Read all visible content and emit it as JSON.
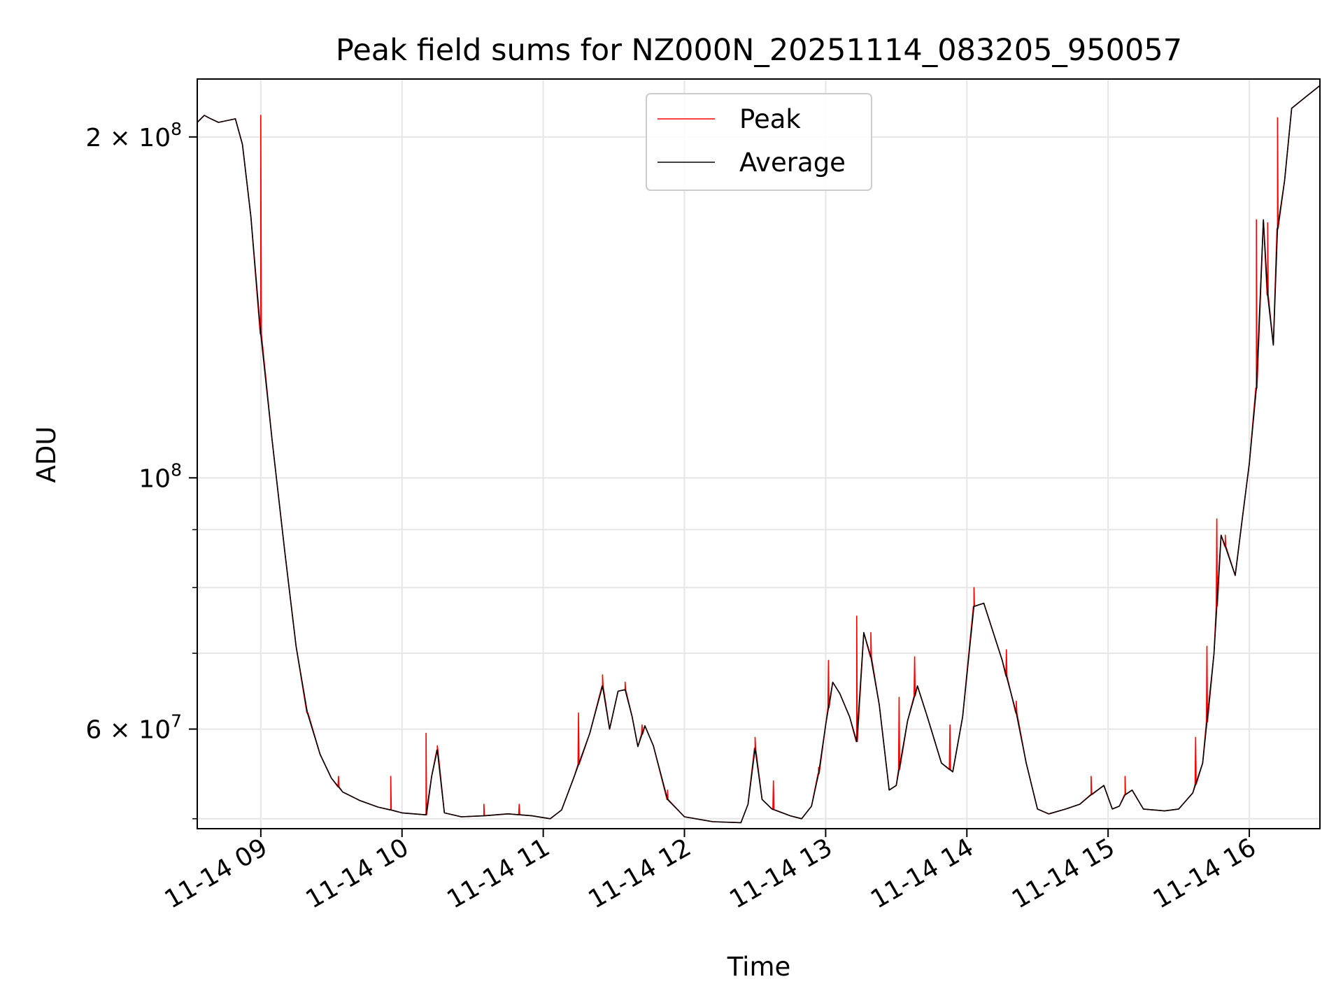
{
  "chart_data": {
    "type": "line",
    "title": "Peak field sums for NZ000N_20251114_083205_950057",
    "xlabel": "Time",
    "ylabel": "ADU",
    "yscale": "log",
    "xlim": [
      8.55,
      16.5
    ],
    "ylim": [
      49000000,
      225000000
    ],
    "grid": true,
    "legend_position": "upper-center",
    "x_ticks": [
      {
        "value": 9,
        "label": "11-14 09"
      },
      {
        "value": 10,
        "label": "11-14 10"
      },
      {
        "value": 11,
        "label": "11-14 11"
      },
      {
        "value": 12,
        "label": "11-14 12"
      },
      {
        "value": 13,
        "label": "11-14 13"
      },
      {
        "value": 14,
        "label": "11-14 14"
      },
      {
        "value": 15,
        "label": "11-14 15"
      },
      {
        "value": 16,
        "label": "11-14 16"
      }
    ],
    "y_major_ticks": [
      {
        "value": 60000000,
        "base": "6",
        "sep": " × ",
        "exp_base": "10",
        "exp": "7"
      },
      {
        "value": 100000000,
        "base": "",
        "sep": "",
        "exp_base": "10",
        "exp": "8"
      },
      {
        "value": 200000000,
        "base": "2",
        "sep": " × ",
        "exp_base": "10",
        "exp": "8"
      }
    ],
    "y_minor_ticks": [
      50000000,
      70000000,
      80000000,
      90000000
    ],
    "series": [
      {
        "name": "Peak",
        "color": "#ff0000",
        "x": [
          9.0,
          9.33,
          9.55,
          9.92,
          10.17,
          10.25,
          10.58,
          10.83,
          11.25,
          11.42,
          11.58,
          11.7,
          11.88,
          12.5,
          12.63,
          12.95,
          13.02,
          13.22,
          13.32,
          13.52,
          13.63,
          13.88,
          14.05,
          14.28,
          14.35,
          14.58,
          14.88,
          15.12,
          15.62,
          15.7,
          15.77,
          15.83,
          16.05,
          16.13,
          16.2
        ],
        "values": [
          209000000,
          62000000,
          54500000,
          54500000,
          59500000,
          58000000,
          51500000,
          51500000,
          62000000,
          67000000,
          66000000,
          60500000,
          53000000,
          59000000,
          54000000,
          55500000,
          69000000,
          75500000,
          73000000,
          64000000,
          69500000,
          60500000,
          80000000,
          70500000,
          63500000,
          50500000,
          54500000,
          54500000,
          59000000,
          71000000,
          92000000,
          89000000,
          169000000,
          168000000,
          208000000
        ]
      },
      {
        "name": "Average",
        "color": "#000000",
        "x": [
          8.55,
          8.6,
          8.63,
          8.7,
          8.78,
          8.82,
          8.87,
          8.93,
          9.0,
          9.08,
          9.17,
          9.25,
          9.33,
          9.42,
          9.5,
          9.58,
          9.7,
          9.83,
          9.92,
          10.0,
          10.17,
          10.21,
          10.25,
          10.3,
          10.42,
          10.58,
          10.75,
          10.92,
          11.05,
          11.13,
          11.22,
          11.33,
          11.42,
          11.47,
          11.53,
          11.58,
          11.63,
          11.67,
          11.72,
          11.78,
          11.88,
          12.0,
          12.2,
          12.4,
          12.45,
          12.5,
          12.55,
          12.62,
          12.75,
          12.83,
          12.9,
          12.95,
          13.0,
          13.05,
          13.1,
          13.17,
          13.22,
          13.27,
          13.32,
          13.38,
          13.45,
          13.5,
          13.58,
          13.65,
          13.72,
          13.82,
          13.9,
          13.97,
          14.05,
          14.12,
          14.25,
          14.35,
          14.42,
          14.5,
          14.58,
          14.7,
          14.8,
          14.88,
          14.97,
          15.03,
          15.08,
          15.12,
          15.17,
          15.25,
          15.4,
          15.5,
          15.6,
          15.67,
          15.75,
          15.8,
          15.83,
          15.9,
          15.95,
          16.0,
          16.05,
          16.1,
          16.13,
          16.17,
          16.2,
          16.25,
          16.3,
          16.4,
          16.5
        ],
        "values": [
          206000000,
          209000000,
          208000000,
          206000000,
          207000000,
          207500000,
          197000000,
          170000000,
          134000000,
          108000000,
          86000000,
          71000000,
          62000000,
          57000000,
          54300000,
          52800000,
          51900000,
          51200000,
          50900000,
          50600000,
          50400000,
          54500000,
          57500000,
          50600000,
          50200000,
          50300000,
          50500000,
          50300000,
          50000000,
          50900000,
          54500000,
          59500000,
          65500000,
          60000000,
          64800000,
          65000000,
          61500000,
          57900000,
          60400000,
          58000000,
          52000000,
          50200000,
          49700000,
          49600000,
          51500000,
          57700000,
          52000000,
          51000000,
          50300000,
          50000000,
          51300000,
          54800000,
          60500000,
          66000000,
          64500000,
          61500000,
          58500000,
          73000000,
          69500000,
          63000000,
          53000000,
          53500000,
          61000000,
          65500000,
          61500000,
          56000000,
          55000000,
          61500000,
          77000000,
          77500000,
          69000000,
          62000000,
          56000000,
          51000000,
          50500000,
          51000000,
          51500000,
          52500000,
          53500000,
          51000000,
          51300000,
          52500000,
          53000000,
          51000000,
          50800000,
          51000000,
          52700000,
          56000000,
          70000000,
          89000000,
          87000000,
          82000000,
          92000000,
          103000000,
          120000000,
          169000000,
          145000000,
          131000000,
          166000000,
          183000000,
          212000000,
          217000000,
          222000000
        ]
      }
    ]
  }
}
